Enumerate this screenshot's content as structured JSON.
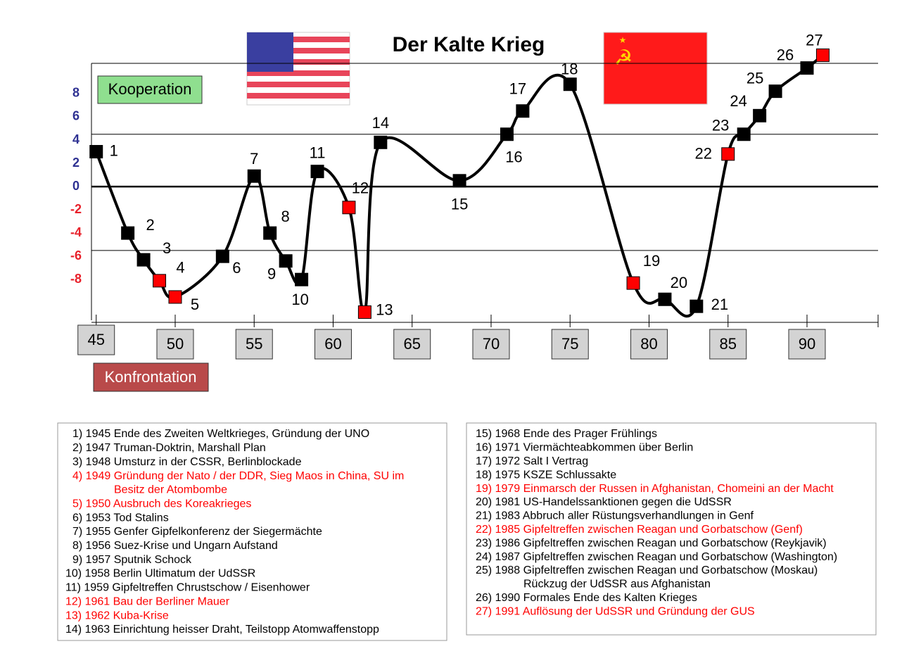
{
  "chart_data": {
    "type": "line",
    "title": "Der Kalte Krieg",
    "x": [
      1945,
      1947,
      1948,
      1949,
      1950,
      1953,
      1955,
      1956,
      1957,
      1958,
      1959,
      1961,
      1962,
      1963,
      1968,
      1971,
      1972,
      1975,
      1979,
      1981,
      1983,
      1985,
      1986,
      1987,
      1988,
      1990,
      1991
    ],
    "series": [
      {
        "color": "#000000",
        "values": [
          3,
          -4,
          -6.3,
          -8.1,
          -9.5,
          -6,
          0.9,
          -4,
          -6.4,
          -8,
          1.3,
          -1.8,
          -10.8,
          3.8,
          0.5,
          4.5,
          6.5,
          8.8,
          -8.3,
          -9.7,
          -10.3,
          2.8,
          4.5,
          6.1,
          8.2,
          10.2,
          11.3
        ],
        "point_labels": [
          "1",
          "2",
          "3",
          "4",
          "5",
          "6",
          "7",
          "8",
          "9",
          "10",
          "11",
          "12",
          "13",
          "14",
          "15",
          "16",
          "17",
          "18",
          "19",
          "20",
          "21",
          "22",
          "23",
          "24",
          "25",
          "26",
          "27"
        ],
        "marker_colors": [
          "#000000",
          "#000000",
          "#000000",
          "#ff0000",
          "#ff0000",
          "#000000",
          "#000000",
          "#000000",
          "#000000",
          "#000000",
          "#000000",
          "#ff0000",
          "#ff0000",
          "#000000",
          "#000000",
          "#000000",
          "#000000",
          "#000000",
          "#ff0000",
          "#000000",
          "#000000",
          "#ff0000",
          "#000000",
          "#000000",
          "#000000",
          "#000000",
          "#ff0000"
        ]
      }
    ],
    "xlim": [
      1944.7,
      1994.5
    ],
    "xticks": [
      {
        "value": 1945,
        "label": "45"
      },
      {
        "value": 1950,
        "label": "50"
      },
      {
        "value": 1955,
        "label": "55"
      },
      {
        "value": 1960,
        "label": "60"
      },
      {
        "value": 1965,
        "label": "65"
      },
      {
        "value": 1970,
        "label": "70"
      },
      {
        "value": 1975,
        "label": "75"
      },
      {
        "value": 1980,
        "label": "80"
      },
      {
        "value": 1985,
        "label": "85"
      },
      {
        "value": 1990,
        "label": "90"
      }
    ],
    "ylim": [
      -11.5,
      10.6
    ],
    "yticks": [
      8,
      6,
      4,
      2,
      0,
      -2,
      -4,
      -6,
      -8
    ],
    "ytick_color_positive": "#2e3192",
    "ytick_color_negative": "#e8202a",
    "hlines": [
      4.5,
      -5.5
    ],
    "legend_positive": "Kooperation",
    "legend_positive_color": "#8fdf8f",
    "legend_negative": "Konfrontation",
    "legend_negative_color": "#b94a4a"
  },
  "events": {
    "left": [
      {
        "lines": [
          "1) 1945 Ende des Zweiten Weltkrieges, Gründung der UNO"
        ]
      },
      {
        "lines": [
          "2) 1947 Truman-Doktrin, Marshall Plan"
        ]
      },
      {
        "lines": [
          "3) 1948 Umsturz in der CSSR, Berlinblockade"
        ]
      },
      {
        "lines": [
          "4) 1949 Gründung der Nato / der DDR, Sieg Maos in China, SU im",
          "Besitz der Atombombe"
        ],
        "color": "#ff0000"
      },
      {
        "lines": [
          "5) 1950 Ausbruch des Koreakrieges"
        ],
        "color": "#ff0000"
      },
      {
        "lines": [
          "6) 1953 Tod Stalins"
        ]
      },
      {
        "lines": [
          "7) 1955 Genfer Gipfelkonferenz der Siegermächte"
        ]
      },
      {
        "lines": [
          "8) 1956 Suez-Krise und Ungarn Aufstand"
        ]
      },
      {
        "lines": [
          "9) 1957 Sputnik Schock"
        ]
      },
      {
        "lines": [
          "10) 1958 Berlin Ultimatum der UdSSR"
        ]
      },
      {
        "lines": [
          "11) 1959 Gipfeltreffen Chrustschow / Eisenhower"
        ]
      },
      {
        "lines": [
          "12) 1961 Bau der Berliner Mauer"
        ],
        "color": "#ff0000"
      },
      {
        "lines": [
          "13) 1962 Kuba-Krise"
        ],
        "color": "#ff0000"
      },
      {
        "lines": [
          "14) 1963 Einrichtung heisser Draht, Teilstopp Atomwaffenstopp"
        ]
      }
    ],
    "right": [
      {
        "lines": [
          "15) 1968 Ende des Prager Frühlings"
        ]
      },
      {
        "lines": [
          "16) 1971 Viermächteabkommen über Berlin"
        ]
      },
      {
        "lines": [
          "17) 1972 Salt I Vertrag"
        ]
      },
      {
        "lines": [
          "18) 1975 KSZE Schlussakte"
        ]
      },
      {
        "lines": [
          "19) 1979 Einmarsch der Russen in Afghanistan, Chomeini an der Macht"
        ],
        "color": "#ff0000"
      },
      {
        "lines": [
          "20) 1981 US-Handelssanktionen gegen die UdSSR"
        ]
      },
      {
        "lines": [
          "21) 1983 Abbruch aller Rüstungsverhandlungen in Genf"
        ]
      },
      {
        "lines": [
          "22) 1985 Gipfeltreffen zwischen Reagan und Gorbatschow (Genf)"
        ],
        "color": "#ff0000"
      },
      {
        "lines": [
          "23) 1986 Gipfeltreffen zwischen Reagan und Gorbatschow (Reykjavik)"
        ]
      },
      {
        "lines": [
          "24) 1987 Gipfeltreffen zwischen Reagan und Gorbatschow (Washington)"
        ]
      },
      {
        "lines": [
          "25) 1988 Gipfeltreffen zwischen Reagan und Gorbatschow (Moskau)",
          "Rückzug der UdSSR aus Afghanistan"
        ]
      },
      {
        "lines": [
          "26) 1990 Formales Ende des Kalten Krieges"
        ]
      },
      {
        "lines": [
          "27) 1991 Auflösung der UdSSR und Gründung der GUS"
        ],
        "color": "#ff0000"
      }
    ]
  }
}
